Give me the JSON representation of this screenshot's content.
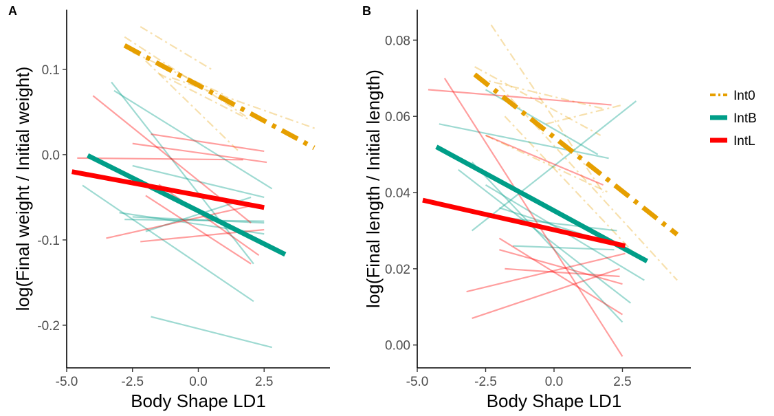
{
  "colors": {
    "Int0": "#E69F00",
    "IntB": "#009E88",
    "IntL": "#FF0000"
  },
  "legend": {
    "placement": "right",
    "items": [
      {
        "label": "Int0",
        "color": "#E69F00",
        "dash": "dotdash"
      },
      {
        "label": "IntB",
        "color": "#009E88",
        "dash": "solid"
      },
      {
        "label": "IntL",
        "color": "#FF0000",
        "dash": "solid"
      }
    ]
  },
  "chart_data": [
    {
      "panel": "A",
      "type": "line",
      "xlabel": "Body Shape LD1",
      "ylabel": "log(Final weight / Initial weight)",
      "xlim": [
        -5.0,
        5.0
      ],
      "ylim": [
        -0.25,
        0.17
      ],
      "xticks": [
        "-5.0",
        "-2.5",
        "0.0",
        "2.5"
      ],
      "yticks": [
        "-0.2",
        "-0.1",
        "0.0",
        "0.1"
      ],
      "grid": false,
      "main_lines": [
        {
          "group": "Int0",
          "x": [
            -2.8,
            4.4
          ],
          "y": [
            0.128,
            0.008
          ]
        },
        {
          "group": "IntB",
          "x": [
            -4.2,
            3.3
          ],
          "y": [
            -0.001,
            -0.117
          ]
        },
        {
          "group": "IntL",
          "x": [
            -4.8,
            2.5
          ],
          "y": [
            -0.02,
            -0.062
          ]
        }
      ],
      "individual_lines": [
        {
          "group": "Int0",
          "x": [
            -2.8,
            1.8
          ],
          "y": [
            0.138,
            0.045
          ]
        },
        {
          "group": "Int0",
          "x": [
            -2.2,
            0.5
          ],
          "y": [
            0.15,
            0.1
          ]
        },
        {
          "group": "Int0",
          "x": [
            -2.5,
            1.0
          ],
          "y": [
            0.12,
            0.07
          ]
        },
        {
          "group": "Int0",
          "x": [
            -2.0,
            1.5
          ],
          "y": [
            0.11,
            0.005
          ]
        },
        {
          "group": "Int0",
          "x": [
            -1.5,
            2.0
          ],
          "y": [
            0.095,
            0.04
          ]
        },
        {
          "group": "Int0",
          "x": [
            -1.0,
            4.5
          ],
          "y": [
            0.09,
            0.03
          ]
        },
        {
          "group": "IntB",
          "x": [
            -3.3,
            2.1
          ],
          "y": [
            0.085,
            -0.128
          ]
        },
        {
          "group": "IntB",
          "x": [
            -3.2,
            2.8
          ],
          "y": [
            0.075,
            -0.04
          ]
        },
        {
          "group": "IntB",
          "x": [
            -4.4,
            2.1
          ],
          "y": [
            -0.036,
            -0.172
          ]
        },
        {
          "group": "IntB",
          "x": [
            -2.5,
            2.5
          ],
          "y": [
            -0.013,
            -0.05
          ]
        },
        {
          "group": "IntB",
          "x": [
            -3.0,
            2.5
          ],
          "y": [
            -0.068,
            -0.093
          ]
        },
        {
          "group": "IntB",
          "x": [
            -2.8,
            2.5
          ],
          "y": [
            -0.076,
            -0.078
          ]
        },
        {
          "group": "IntB",
          "x": [
            -2.5,
            2.5
          ],
          "y": [
            -0.073,
            -0.08
          ]
        },
        {
          "group": "IntB",
          "x": [
            -2.0,
            2.0
          ],
          "y": [
            -0.09,
            -0.05
          ]
        },
        {
          "group": "IntB",
          "x": [
            -1.8,
            2.8
          ],
          "y": [
            -0.19,
            -0.226
          ]
        },
        {
          "group": "IntL",
          "x": [
            -4.0,
            2.0
          ],
          "y": [
            0.069,
            -0.08
          ]
        },
        {
          "group": "IntL",
          "x": [
            -4.6,
            1.7
          ],
          "y": [
            -0.004,
            -0.006
          ]
        },
        {
          "group": "IntL",
          "x": [
            -2.5,
            2.6
          ],
          "y": [
            0.013,
            -0.009
          ]
        },
        {
          "group": "IntL",
          "x": [
            -1.8,
            2.5
          ],
          "y": [
            0.024,
            0.004
          ]
        },
        {
          "group": "IntL",
          "x": [
            -3.5,
            2.0
          ],
          "y": [
            -0.098,
            -0.06
          ]
        },
        {
          "group": "IntL",
          "x": [
            -2.2,
            2.5
          ],
          "y": [
            -0.102,
            -0.088
          ]
        },
        {
          "group": "IntL",
          "x": [
            -2.0,
            2.0
          ],
          "y": [
            -0.048,
            -0.128
          ]
        },
        {
          "group": "IntL",
          "x": [
            -1.5,
            2.3
          ],
          "y": [
            -0.035,
            -0.118
          ]
        }
      ]
    },
    {
      "panel": "B",
      "type": "line",
      "xlabel": "Body Shape LD1",
      "ylabel": "log(Final length / Initial length)",
      "xlim": [
        -5.0,
        5.0
      ],
      "ylim": [
        -0.006,
        0.088
      ],
      "xticks": [
        "-5.0",
        "-2.5",
        "0.0",
        "2.5"
      ],
      "yticks": [
        "0.00",
        "0.02",
        "0.04",
        "0.06",
        "0.08"
      ],
      "grid": false,
      "main_lines": [
        {
          "group": "Int0",
          "x": [
            -2.9,
            4.5
          ],
          "y": [
            0.071,
            0.029
          ]
        },
        {
          "group": "IntB",
          "x": [
            -4.3,
            3.4
          ],
          "y": [
            0.052,
            0.022
          ]
        },
        {
          "group": "IntL",
          "x": [
            -4.8,
            2.6
          ],
          "y": [
            0.038,
            0.026
          ]
        }
      ],
      "individual_lines": [
        {
          "group": "Int0",
          "x": [
            -2.3,
            1.8
          ],
          "y": [
            0.084,
            0.04
          ]
        },
        {
          "group": "Int0",
          "x": [
            -2.9,
            1.7
          ],
          "y": [
            0.073,
            0.055
          ]
        },
        {
          "group": "Int0",
          "x": [
            -2.8,
            1.8
          ],
          "y": [
            0.07,
            0.062
          ]
        },
        {
          "group": "Int0",
          "x": [
            -0.3,
            2.5
          ],
          "y": [
            0.058,
            0.063
          ]
        },
        {
          "group": "Int0",
          "x": [
            -2.5,
            2.0
          ],
          "y": [
            0.055,
            0.04
          ]
        },
        {
          "group": "Int0",
          "x": [
            -2.0,
            4.5
          ],
          "y": [
            0.068,
            0.017
          ]
        },
        {
          "group": "Int0",
          "x": [
            -1.8,
            3.2
          ],
          "y": [
            0.06,
            0.022
          ]
        },
        {
          "group": "IntB",
          "x": [
            -4.2,
            2.0
          ],
          "y": [
            0.058,
            0.049
          ]
        },
        {
          "group": "IntB",
          "x": [
            -2.5,
            1.6
          ],
          "y": [
            0.067,
            0.05
          ]
        },
        {
          "group": "IntB",
          "x": [
            -3.0,
            3.0
          ],
          "y": [
            0.03,
            0.064
          ]
        },
        {
          "group": "IntB",
          "x": [
            -3.5,
            2.8
          ],
          "y": [
            0.046,
            0.011
          ]
        },
        {
          "group": "IntB",
          "x": [
            -3.0,
            2.5
          ],
          "y": [
            0.048,
            0.006
          ]
        },
        {
          "group": "IntB",
          "x": [
            -2.5,
            3.3
          ],
          "y": [
            0.042,
            0.017
          ]
        },
        {
          "group": "IntB",
          "x": [
            -2.0,
            2.8
          ],
          "y": [
            0.036,
            0.025
          ]
        },
        {
          "group": "IntB",
          "x": [
            -1.5,
            2.2
          ],
          "y": [
            0.026,
            0.025
          ]
        },
        {
          "group": "IntB",
          "x": [
            -2.5,
            2.3
          ],
          "y": [
            0.034,
            0.03
          ]
        },
        {
          "group": "IntL",
          "x": [
            -4.6,
            2.1
          ],
          "y": [
            0.067,
            0.063
          ]
        },
        {
          "group": "IntL",
          "x": [
            -4.0,
            2.5
          ],
          "y": [
            0.07,
            -0.003
          ]
        },
        {
          "group": "IntL",
          "x": [
            -2.5,
            1.8
          ],
          "y": [
            0.055,
            0.042
          ]
        },
        {
          "group": "IntL",
          "x": [
            -2.0,
            2.5
          ],
          "y": [
            0.028,
            0.008
          ]
        },
        {
          "group": "IntL",
          "x": [
            -3.2,
            2.6
          ],
          "y": [
            0.014,
            0.024
          ]
        },
        {
          "group": "IntL",
          "x": [
            -3.0,
            2.4
          ],
          "y": [
            0.007,
            0.02
          ]
        },
        {
          "group": "IntL",
          "x": [
            -2.0,
            2.5
          ],
          "y": [
            0.025,
            0.016
          ]
        },
        {
          "group": "IntL",
          "x": [
            -1.8,
            2.4
          ],
          "y": [
            0.02,
            0.018
          ]
        }
      ]
    }
  ]
}
